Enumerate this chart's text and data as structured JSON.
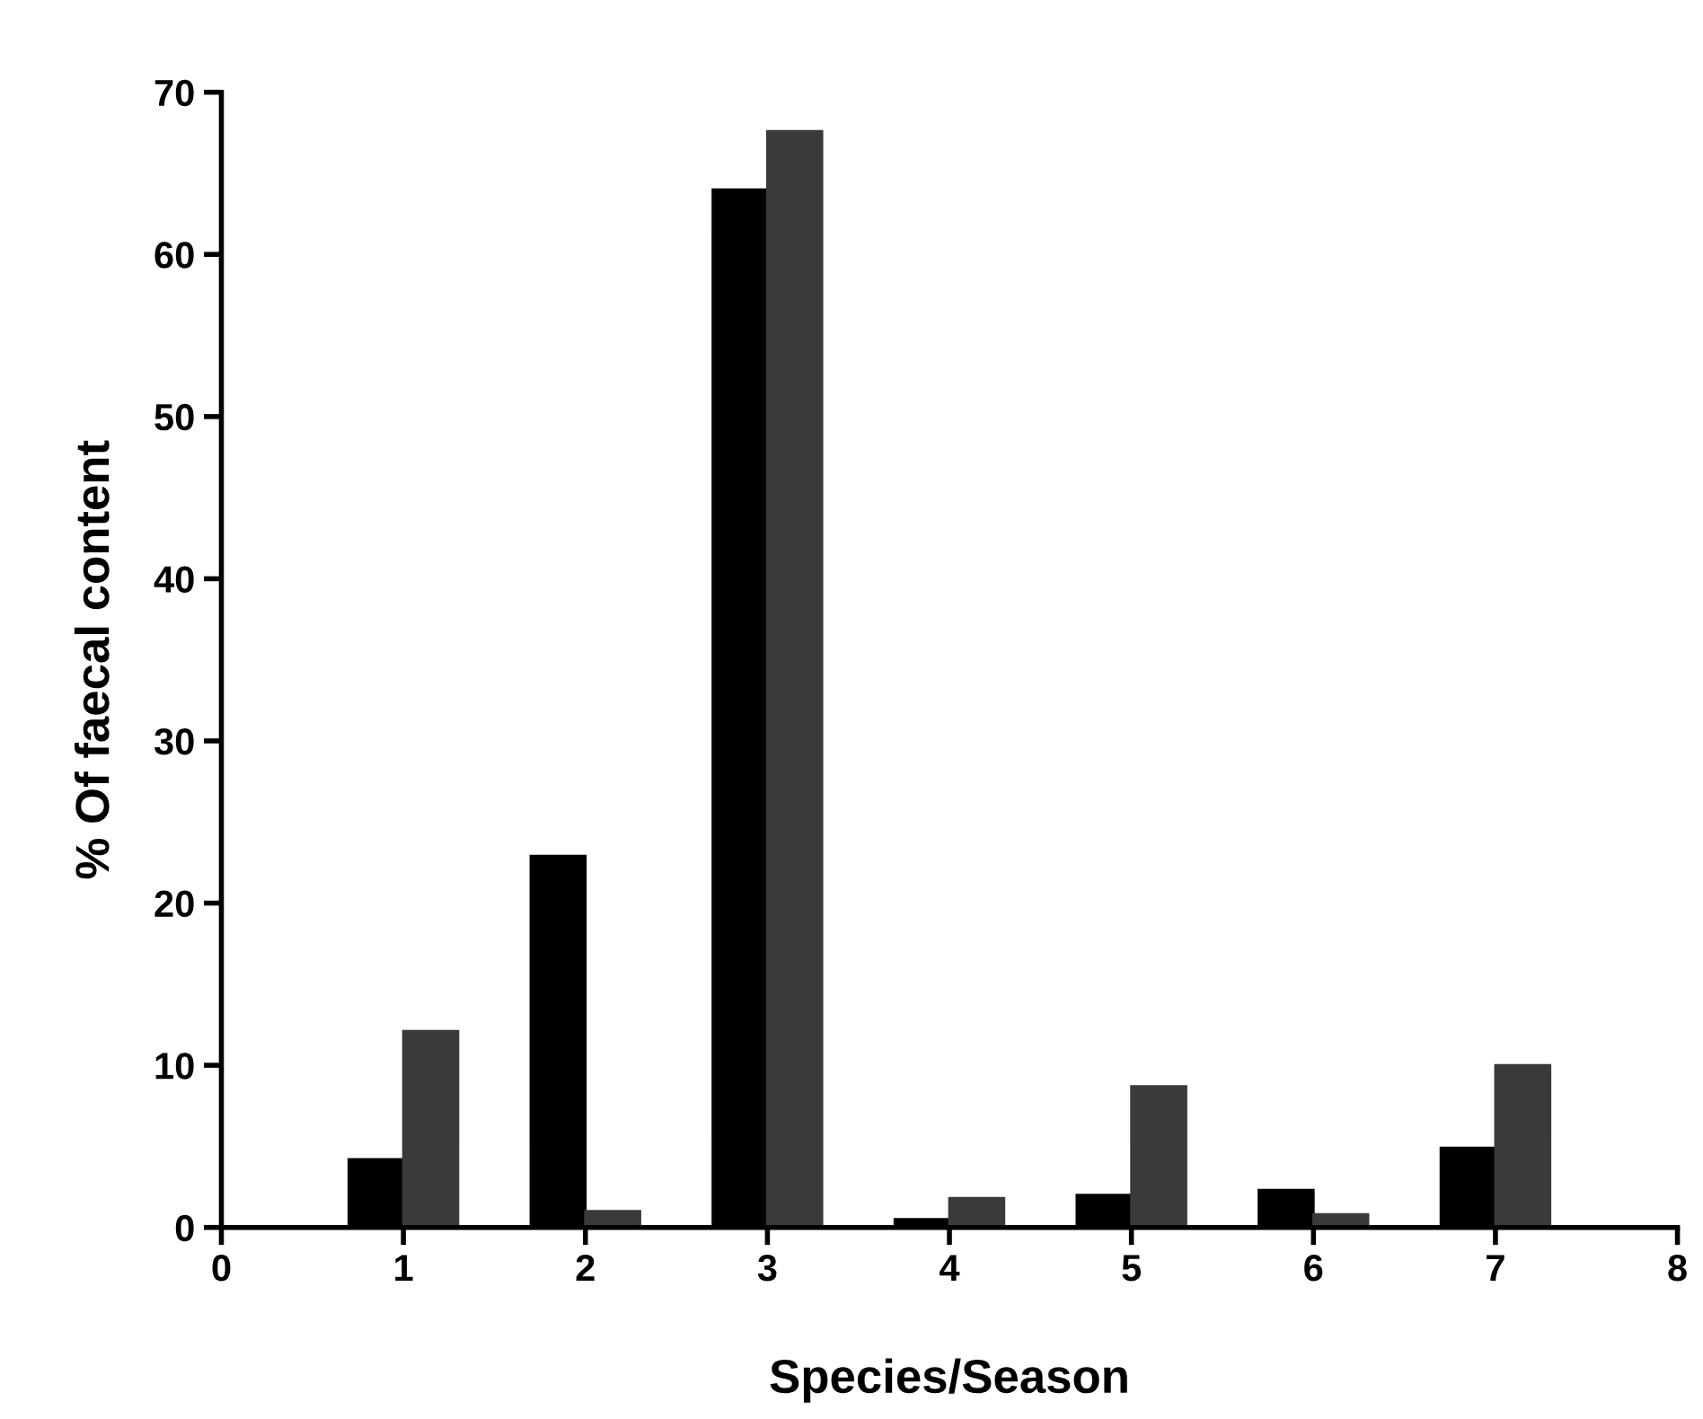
{
  "chart_data": {
    "type": "bar",
    "xlabel": "Species/Season",
    "ylabel": "% Of faecal content",
    "x": [
      1,
      2,
      3,
      4,
      5,
      6,
      7
    ],
    "series": [
      {
        "color": "#000000",
        "values": [
          4.2,
          22.9,
          64.0,
          0.5,
          2.0,
          2.3,
          4.9
        ]
      },
      {
        "color": "#3a3a3a",
        "values": [
          12.1,
          1.0,
          67.6,
          1.8,
          8.7,
          0.8,
          10.0
        ]
      }
    ],
    "xlim": [
      0,
      8
    ],
    "xticks": [
      0,
      1,
      2,
      3,
      4,
      5,
      6,
      7,
      8
    ],
    "ylim": [
      0,
      70
    ],
    "yticks": [
      0,
      10,
      20,
      30,
      40,
      50,
      60,
      70
    ],
    "grid": false
  }
}
